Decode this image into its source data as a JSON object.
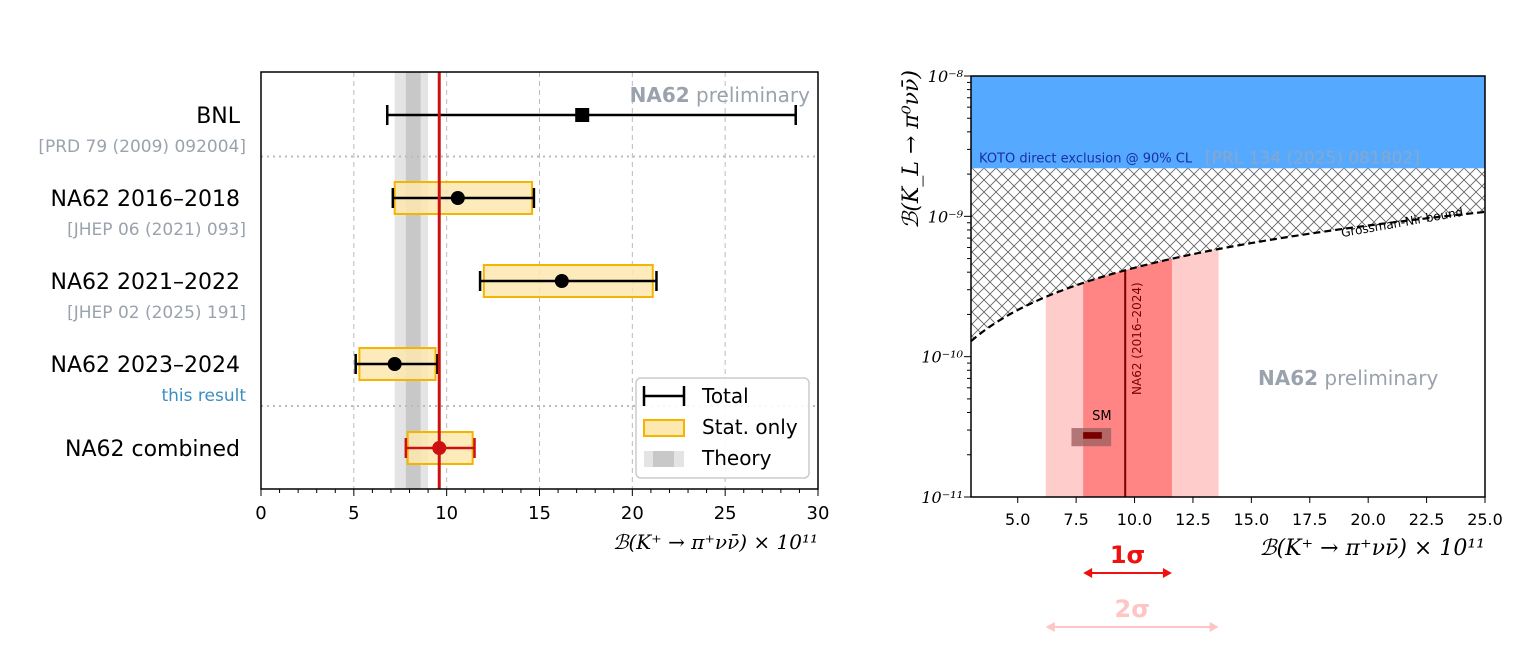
{
  "chart_data": [
    {
      "type": "scatter",
      "xlabel": "ℬ(K⁺ → π⁺νν̄) × 10¹¹",
      "xlim": [
        0,
        30
      ],
      "xticks": [
        0,
        5,
        10,
        15,
        20,
        25,
        30
      ],
      "grid": true,
      "watermark": {
        "bold": "NA62",
        "rest": "preliminary"
      },
      "legend": {
        "placement": "bottom-right",
        "entries": [
          "Total",
          "Stat. only",
          "Theory"
        ]
      },
      "theory": {
        "outer": [
          7.2,
          9.0
        ],
        "inner": [
          7.8,
          8.6
        ]
      },
      "combined_line": 9.6,
      "rows": [
        {
          "label": "BNL",
          "ref": "[PRD 79 (2009) 092004]",
          "value": 17.3,
          "total": [
            6.8,
            28.8
          ],
          "stat": null,
          "marker": "square",
          "separator_after": true
        },
        {
          "label": "NA62 2016–2018",
          "ref": "[JHEP 06 (2021) 093]",
          "value": 10.6,
          "total": [
            7.1,
            14.7
          ],
          "stat": [
            7.2,
            14.6
          ],
          "marker": "circle"
        },
        {
          "label": "NA62 2021–2022",
          "ref": "[JHEP 02 (2025) 191]",
          "value": 16.2,
          "total": [
            11.8,
            21.3
          ],
          "stat": [
            12.0,
            21.1
          ],
          "marker": "circle"
        },
        {
          "label": "NA62 2023–2024",
          "ref": "this result",
          "value": 7.2,
          "total": [
            5.1,
            9.5
          ],
          "stat": [
            5.3,
            9.4
          ],
          "marker": "circle",
          "separator_after": true
        },
        {
          "label": "NA62 combined",
          "ref": "",
          "value": 9.6,
          "total": [
            7.8,
            11.5
          ],
          "stat": [
            7.9,
            11.4
          ],
          "marker": "circle",
          "color": "#cc1111"
        }
      ],
      "colors": {
        "total": "#000000",
        "stat_fill": "#fde8b0",
        "stat_edge": "#f5b400",
        "theory_outer": "#e4e4e4",
        "theory_inner": "#c8c8c8",
        "combined": "#cc1111",
        "ref": "#9aa3ad",
        "this_result": "#3b8fc0"
      }
    },
    {
      "type": "area",
      "xlabel": "ℬ(K⁺ → π⁺νν̄) × 10¹¹",
      "ylabel": "ℬ(K_L → π⁰νν̄)",
      "xlim": [
        3,
        25
      ],
      "ylim": [
        1e-11,
        1e-08
      ],
      "yscale": "log",
      "xticks": [
        "5.0",
        "7.5",
        "10.0",
        "12.5",
        "15.0",
        "17.5",
        "20.0",
        "22.5",
        "25.0"
      ],
      "yticks": [
        {
          "value": 1e-11,
          "label": "10⁻¹¹"
        },
        {
          "value": 1e-10,
          "label": "10⁻¹⁰"
        },
        {
          "value": 1e-09,
          "label": "10⁻⁹"
        },
        {
          "value": 1e-08,
          "label": "10⁻⁸"
        }
      ],
      "koto": {
        "lower": 2.2e-09,
        "label": "KOTO direct exclusion @ 90% CL",
        "ref": "[PRL 134 (2025) 081802]",
        "color": "#55aaff"
      },
      "grossman_nir": {
        "slope": 4.3e-11,
        "label": "Grossman-Nir bound"
      },
      "na62": {
        "central": 9.6,
        "one_sigma": [
          7.8,
          11.6
        ],
        "two_sigma": [
          6.2,
          13.6
        ],
        "label": "NA62 (2016–2024)"
      },
      "sm": {
        "label": "SM",
        "outer_x": [
          7.3,
          9.0
        ],
        "outer_y": [
          2.3e-11,
          3.1e-11
        ],
        "inner_x": [
          7.8,
          8.6
        ],
        "inner_y": [
          2.6e-11,
          2.9e-11
        ]
      },
      "watermark": {
        "bold": "NA62",
        "rest": "preliminary"
      },
      "sigma_arrows": [
        {
          "label": "1σ",
          "range": [
            7.8,
            11.6
          ],
          "color": "#ee1111"
        },
        {
          "label": "2σ",
          "range": [
            6.2,
            13.6
          ],
          "color": "#ffc4c4"
        }
      ],
      "colors": {
        "one_sigma": "#ff8585",
        "two_sigma": "#ffcccc",
        "central": "#7a0000",
        "sm_outer": "#a06060",
        "sm_inner": "#7a0000"
      }
    }
  ]
}
